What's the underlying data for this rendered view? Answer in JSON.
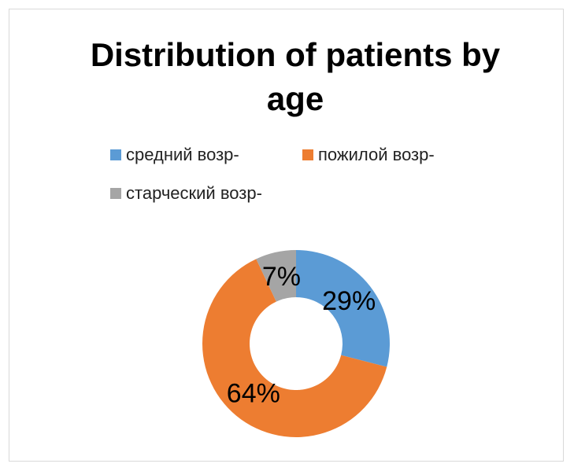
{
  "chart_data": {
    "type": "pie",
    "donut": true,
    "title": "Distribution of patients by age",
    "categories": [
      "средний возр-",
      "пожилой возр-",
      "старческий возр-"
    ],
    "values": [
      29,
      64,
      7
    ],
    "value_labels": [
      "29%",
      "64%",
      "7%"
    ],
    "colors": [
      "#5b9bd5",
      "#ed7d31",
      "#a5a5a5"
    ],
    "legend": "top"
  }
}
